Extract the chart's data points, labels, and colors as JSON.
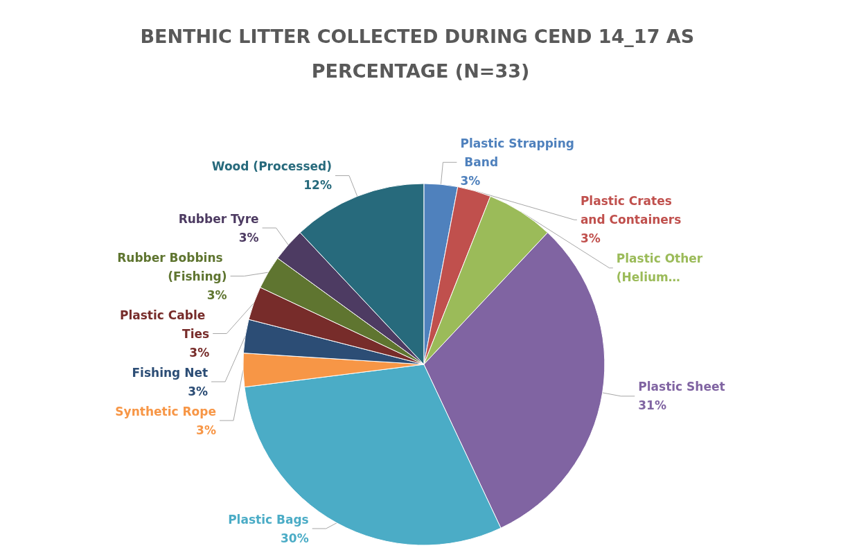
{
  "chart_data": {
    "type": "pie",
    "title": "BENTHIC LITTER COLLECTED DURING CEND 14_17 AS PERCENTAGE (N=33)",
    "categories": [
      "Plastic Strapping Band",
      "Plastic Crates and Containers",
      "Plastic Other (Helium…",
      "Plastic Sheet",
      "Plastic Bags",
      "Synthetic Rope",
      "Fishing Net",
      "Plastic Cable Ties",
      "Rubber Bobbins (Fishing)",
      "Rubber Tyre",
      "Wood (Processed)"
    ],
    "values": [
      3,
      3,
      6,
      31,
      30,
      3,
      3,
      3,
      3,
      3,
      12
    ],
    "value_labels": [
      "3%",
      "3%",
      null,
      "31%",
      "30%",
      "3%",
      "3%",
      "3%",
      "3%",
      "3%",
      "12%"
    ],
    "colors": [
      "#4f81bd",
      "#c0504d",
      "#9bbb59",
      "#8064a2",
      "#4bacc6",
      "#f79646",
      "#2c4d75",
      "#772c2a",
      "#5f7530",
      "#4d3b62",
      "#276a7c"
    ],
    "legend": false
  }
}
